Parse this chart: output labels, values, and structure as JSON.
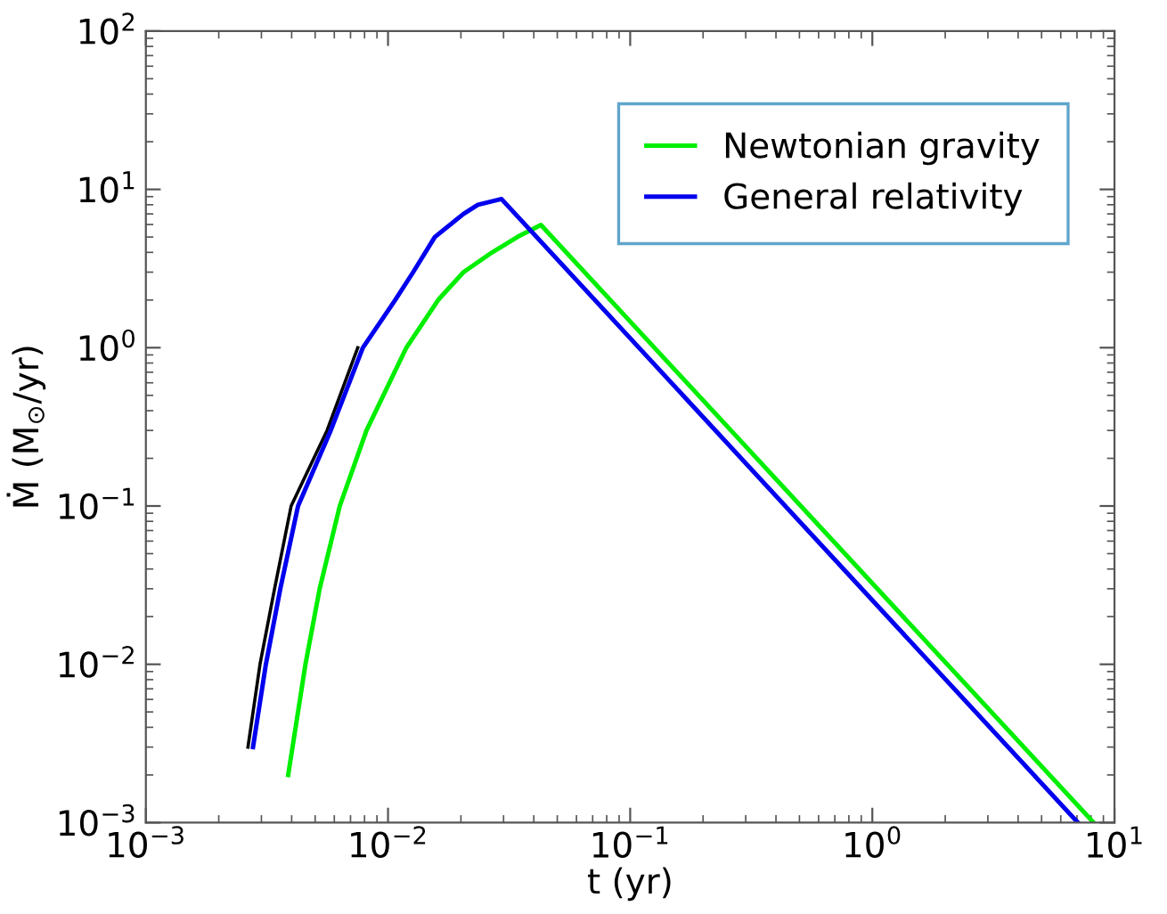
{
  "chart_data": {
    "type": "line",
    "xlabel": "t (yr)",
    "ylabel": "Ṁ (M$_{⊙}$/yr)",
    "log": "xy",
    "xlim": [
      0.001,
      10
    ],
    "ylim": [
      0.001,
      100
    ],
    "xticks": [
      {
        "value": 0.001,
        "label": "10$^{−3}$"
      },
      {
        "value": 0.01,
        "label": "10$^{−2}$"
      },
      {
        "value": 0.1,
        "label": "10$^{−1}$"
      },
      {
        "value": 1,
        "label": "10$^{0}$"
      },
      {
        "value": 10,
        "label": "10$^{1}$"
      }
    ],
    "yticks": [
      {
        "value": 0.001,
        "label": "10$^{−3}$"
      },
      {
        "value": 0.01,
        "label": "10$^{−2}$"
      },
      {
        "value": 0.1,
        "label": "10$^{−1}$"
      },
      {
        "value": 1,
        "label": "10$^{0}$"
      },
      {
        "value": 10,
        "label": "10$^{1}$"
      },
      {
        "value": 100,
        "label": "10$^{2}$"
      }
    ],
    "grid": false,
    "legend": "top right",
    "marker": "none",
    "line_style": "solid",
    "series": [
      {
        "color": "#000000",
        "x": [
          0.00264,
          0.00296,
          0.0034,
          0.00398,
          0.0056,
          0.0075
        ],
        "values": [
          0.003,
          0.01,
          0.03,
          0.1,
          0.3,
          1
        ]
      },
      {
        "name": "Newtonian gravity",
        "color": "#00ee00",
        "x": [
          0.00387,
          0.00456,
          0.00522,
          0.00632,
          0.00815,
          0.0119,
          0.0161,
          0.0205,
          0.0269,
          0.0342,
          0.0428,
          8.2
        ],
        "values": [
          0.002,
          0.01,
          0.03,
          0.1,
          0.3,
          1,
          2,
          3,
          4,
          5,
          5.96,
          0.001
        ]
      },
      {
        "name": "General relativity",
        "color": "#0000ee",
        "x": [
          0.00277,
          0.00313,
          0.00359,
          0.00425,
          0.0058,
          0.00787,
          0.0107,
          0.0127,
          0.0156,
          0.0205,
          0.0235,
          0.0294,
          7.06
        ],
        "values": [
          0.003,
          0.01,
          0.03,
          0.1,
          0.3,
          1,
          2,
          3,
          5,
          7,
          8,
          8.7,
          0.001
        ]
      }
    ]
  }
}
